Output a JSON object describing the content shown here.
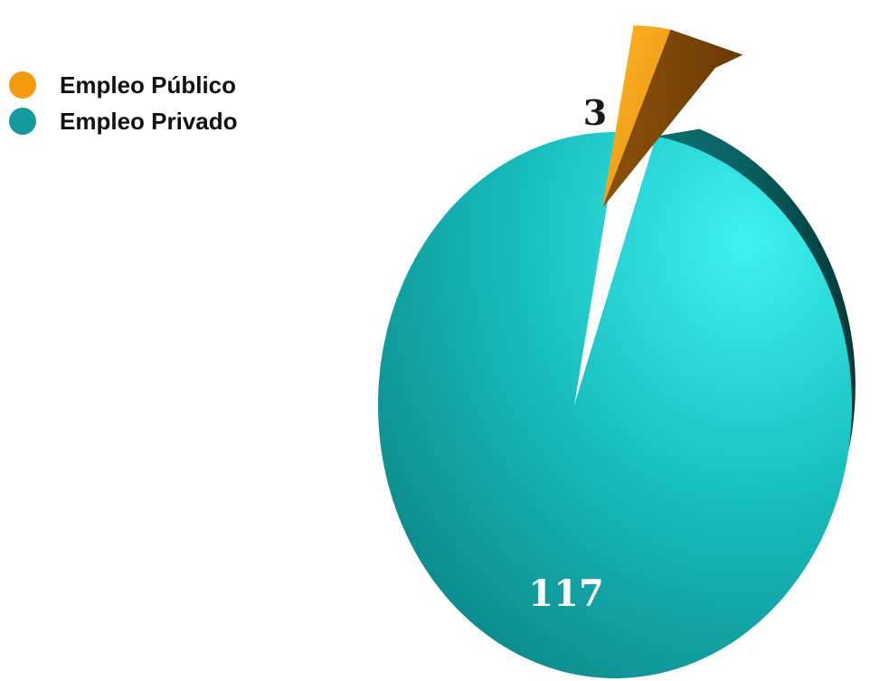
{
  "chart_data": {
    "type": "pie",
    "categories": [
      "Empleo Público",
      "Empleo Privado"
    ],
    "values": [
      3,
      117
    ],
    "data_labels": [
      "3",
      "117"
    ],
    "colors": [
      "#F59A0C",
      "#149C9C"
    ],
    "exploded": "Empleo Público",
    "style": "3d",
    "legend_position": "top-left",
    "title": ""
  },
  "legend": {
    "items": [
      {
        "label": "Empleo Público",
        "color": "#F59A0C"
      },
      {
        "label": "Empleo Privado",
        "color": "#149C9C"
      }
    ]
  }
}
